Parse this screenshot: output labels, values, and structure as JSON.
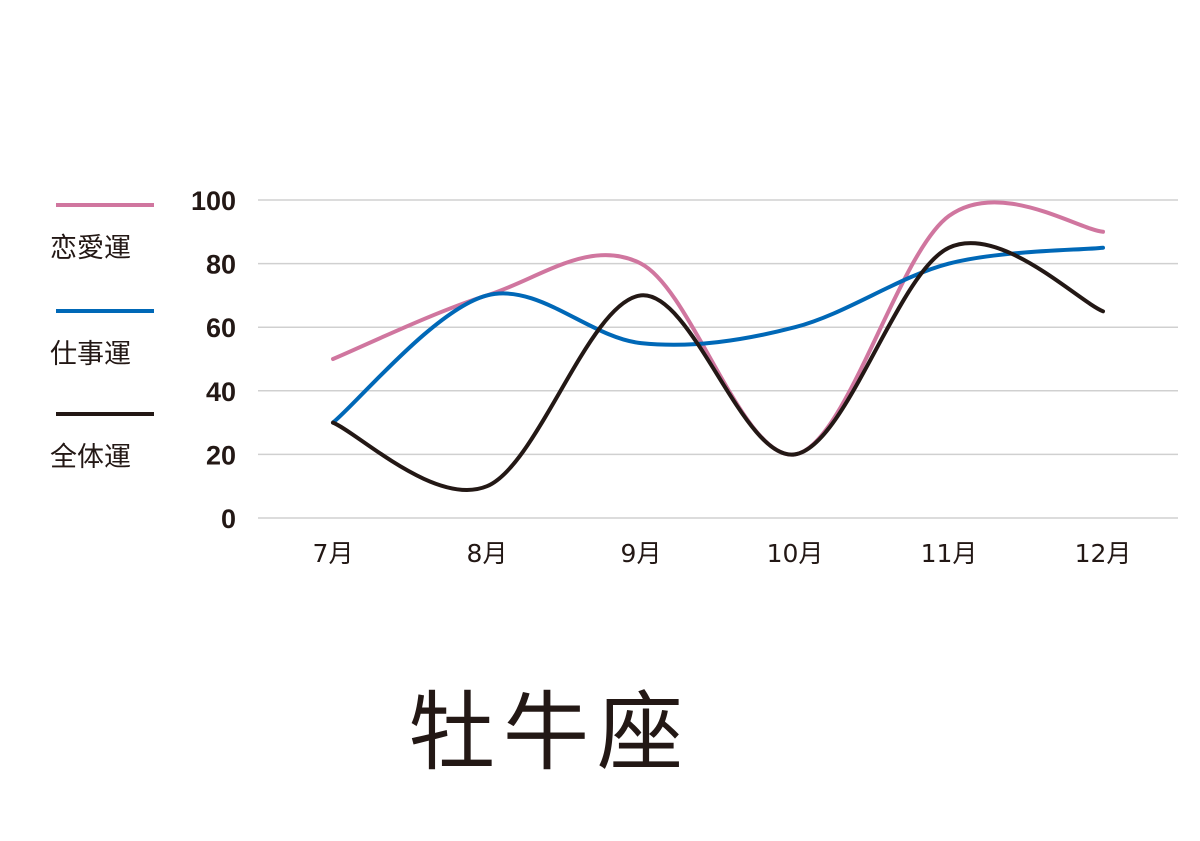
{
  "title": "牡牛座",
  "chart_data": {
    "type": "line",
    "categories": [
      "7月",
      "8月",
      "9月",
      "10月",
      "11月",
      "12月"
    ],
    "series": [
      {
        "name": "恋愛運",
        "color": "#d0769f",
        "values": [
          50,
          70,
          80,
          20,
          95,
          90
        ]
      },
      {
        "name": "仕事運",
        "color": "#0068b7",
        "values": [
          30,
          70,
          55,
          60,
          80,
          85
        ]
      },
      {
        "name": "全体運",
        "color": "#231815",
        "values": [
          30,
          10,
          70,
          20,
          85,
          65
        ]
      }
    ],
    "yticks": [
      "0",
      "20",
      "40",
      "60",
      "80",
      "100"
    ],
    "ylim": [
      0,
      100
    ],
    "grid": true,
    "legend_position": "left",
    "smooth": true
  }
}
